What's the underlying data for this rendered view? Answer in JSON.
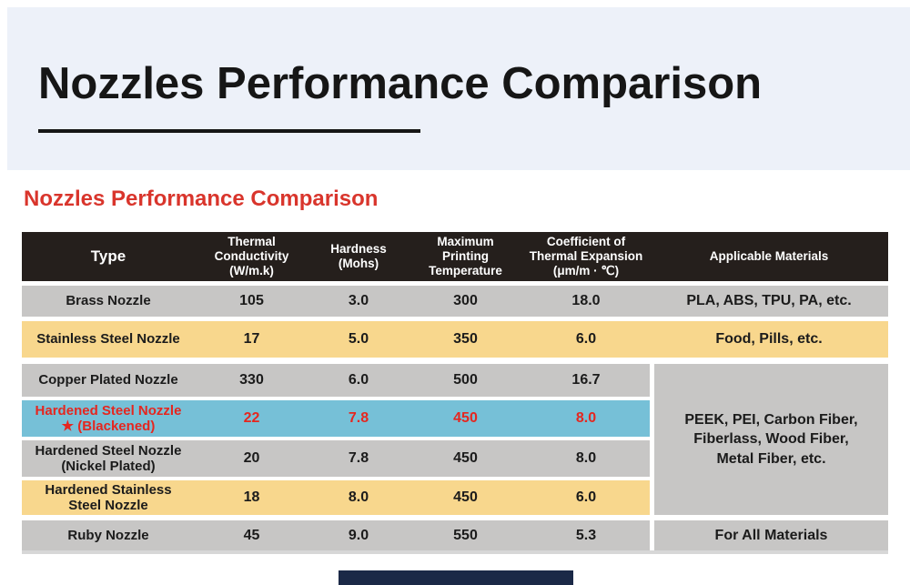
{
  "banner": {
    "title": "Nozzles Performance Comparison"
  },
  "section_heading": "Nozzles Performance Comparison",
  "table": {
    "columns": [
      "Type",
      "Thermal Conductivity\n(W/m.k)",
      "Hardness\n(Mohs)",
      "Maximum\nPrinting\nTemperature",
      "Coefficient of\nThermal Expansion\n(μm/m · ℃)",
      "Applicable Materials"
    ],
    "rows": [
      {
        "type": "Brass Nozzle",
        "conductivity": "105",
        "hardness": "3.0",
        "max_temp": "300",
        "expansion": "18.0",
        "materials": "PLA, ABS, TPU, PA, etc."
      },
      {
        "type": "Stainless Steel Nozzle",
        "conductivity": "17",
        "hardness": "5.0",
        "max_temp": "350",
        "expansion": "6.0",
        "materials": "Food, Pills, etc."
      },
      {
        "type": "Copper Plated Nozzle",
        "conductivity": "330",
        "hardness": "6.0",
        "max_temp": "500",
        "expansion": "16.7"
      },
      {
        "type": "Hardened Steel Nozzle\n★ (Blackened)",
        "conductivity": "22",
        "hardness": "7.8",
        "max_temp": "450",
        "expansion": "8.0",
        "highlighted": true
      },
      {
        "type": "Hardened Steel Nozzle\n(Nickel Plated)",
        "conductivity": "20",
        "hardness": "7.8",
        "max_temp": "450",
        "expansion": "8.0"
      },
      {
        "type": "Hardened Stainless\nSteel Nozzle",
        "conductivity": "18",
        "hardness": "8.0",
        "max_temp": "450",
        "expansion": "6.0"
      },
      {
        "type": "Ruby Nozzle",
        "conductivity": "45",
        "hardness": "9.0",
        "max_temp": "550",
        "expansion": "5.3",
        "materials": "For All Materials"
      }
    ],
    "merged_materials": "PEEK, PEI, Carbon Fiber,\nFiberlass, Wood Fiber,\nMetal Fiber, etc."
  },
  "colors": {
    "banner_bg": "#edf1f9",
    "accent_red": "#d9352c",
    "header_bg": "#251f1c",
    "row_gray": "#c7c6c5",
    "row_yellow": "#f8d78d",
    "row_blue": "#76c0d7",
    "highlight_text": "#e5261f",
    "footer_bar": "#1b2947"
  },
  "chart_data": {
    "type": "table",
    "title": "Nozzles Performance Comparison",
    "columns": [
      "Type",
      "Thermal Conductivity (W/m.k)",
      "Hardness (Mohs)",
      "Maximum Printing Temperature",
      "Coefficient of Thermal Expansion (μm/m · ℃)",
      "Applicable Materials"
    ],
    "rows": [
      [
        "Brass Nozzle",
        105,
        3.0,
        300,
        18.0,
        "PLA, ABS, TPU, PA, etc."
      ],
      [
        "Stainless Steel Nozzle",
        17,
        5.0,
        350,
        6.0,
        "Food, Pills, etc."
      ],
      [
        "Copper Plated Nozzle",
        330,
        6.0,
        500,
        16.7,
        "PEEK, PEI, Carbon Fiber, Fiberlass, Wood Fiber, Metal Fiber, etc."
      ],
      [
        "Hardened Steel Nozzle (Blackened)",
        22,
        7.8,
        450,
        8.0,
        "PEEK, PEI, Carbon Fiber, Fiberlass, Wood Fiber, Metal Fiber, etc."
      ],
      [
        "Hardened Steel Nozzle (Nickel Plated)",
        20,
        7.8,
        450,
        8.0,
        "PEEK, PEI, Carbon Fiber, Fiberlass, Wood Fiber, Metal Fiber, etc."
      ],
      [
        "Hardened Stainless Steel Nozzle",
        18,
        8.0,
        450,
        6.0,
        "PEEK, PEI, Carbon Fiber, Fiberlass, Wood Fiber, Metal Fiber, etc."
      ],
      [
        "Ruby Nozzle",
        45,
        9.0,
        550,
        5.3,
        "For All Materials"
      ]
    ]
  }
}
